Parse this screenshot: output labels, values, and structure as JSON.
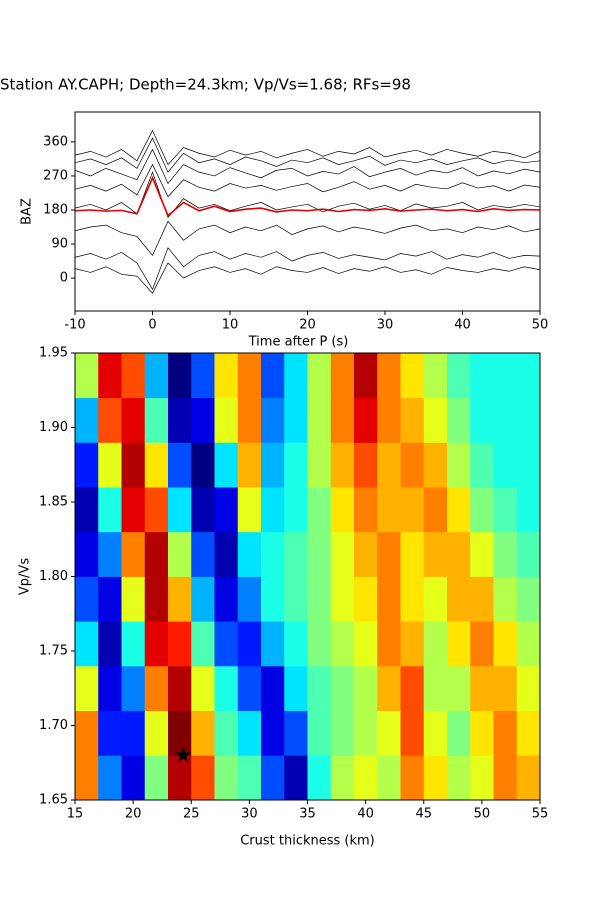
{
  "chart_data": [
    {
      "type": "line",
      "title": "Station AY.CAPH; Depth=24.3km; Vp/Vs=1.68; RFs=98",
      "xlabel": "Time after P (s)",
      "ylabel": "BAZ",
      "x": [
        -10,
        -8,
        -6,
        -4,
        -2,
        0,
        2,
        4,
        6,
        8,
        10,
        12,
        14,
        16,
        18,
        20,
        22,
        24,
        26,
        28,
        30,
        32,
        34,
        36,
        38,
        40,
        42,
        44,
        46,
        48,
        50
      ],
      "xlim": [
        -10,
        50
      ],
      "xticks": [
        -10,
        0,
        10,
        20,
        30,
        40,
        50
      ],
      "ylim": [
        -87,
        439
      ],
      "yticks": [
        0,
        90,
        180,
        270,
        360
      ],
      "series": [
        {
          "color": "#000000",
          "values": [
            325,
            335,
            320,
            340,
            310,
            390,
            300,
            345,
            330,
            320,
            338,
            325,
            335,
            318,
            330,
            340,
            322,
            335,
            328,
            345,
            320,
            330,
            338,
            325,
            340,
            330,
            322,
            335,
            330,
            318,
            335
          ]
        },
        {
          "color": "#000000",
          "values": [
            305,
            315,
            300,
            318,
            290,
            370,
            280,
            330,
            305,
            315,
            300,
            320,
            310,
            295,
            312,
            305,
            318,
            300,
            310,
            322,
            298,
            312,
            305,
            315,
            300,
            310,
            318,
            302,
            312,
            305,
            310
          ]
        },
        {
          "color": "#000000",
          "values": [
            285,
            270,
            290,
            275,
            260,
            340,
            250,
            300,
            280,
            270,
            292,
            278,
            265,
            285,
            290,
            270,
            282,
            275,
            295,
            268,
            280,
            290,
            272,
            285,
            278,
            292,
            270,
            283,
            276,
            288,
            280
          ]
        },
        {
          "color": "#000000",
          "values": [
            235,
            245,
            230,
            248,
            220,
            300,
            215,
            260,
            240,
            230,
            250,
            238,
            245,
            232,
            242,
            250,
            228,
            240,
            255,
            235,
            245,
            230,
            248,
            240,
            236,
            252,
            238,
            244,
            230,
            246,
            240
          ]
        },
        {
          "color": "#000000",
          "values": [
            185,
            195,
            180,
            200,
            170,
            280,
            160,
            210,
            185,
            195,
            178,
            190,
            200,
            180,
            188,
            195,
            175,
            190,
            198,
            182,
            192,
            178,
            196,
            185,
            190,
            200,
            180,
            192,
            186,
            195,
            188
          ]
        },
        {
          "color": "#000000",
          "values": [
            125,
            135,
            140,
            120,
            110,
            60,
            150,
            100,
            130,
            140,
            120,
            135,
            125,
            140,
            115,
            130,
            138,
            122,
            135,
            128,
            118,
            132,
            140,
            125,
            130,
            120,
            135,
            128,
            138,
            122,
            130
          ]
        },
        {
          "color": "#000000",
          "values": [
            55,
            65,
            50,
            68,
            40,
            -30,
            80,
            30,
            60,
            70,
            50,
            65,
            55,
            70,
            45,
            60,
            68,
            52,
            62,
            55,
            48,
            65,
            58,
            70,
            50,
            62,
            55,
            68,
            52,
            60,
            58
          ]
        },
        {
          "color": "#000000",
          "values": [
            25,
            15,
            30,
            10,
            5,
            -40,
            40,
            0,
            20,
            30,
            15,
            25,
            10,
            30,
            20,
            15,
            28,
            12,
            25,
            18,
            30,
            15,
            22,
            10,
            28,
            20,
            15,
            25,
            18,
            30,
            22
          ]
        },
        {
          "color": "#e00000",
          "values": [
            178,
            180,
            177,
            179,
            170,
            265,
            165,
            200,
            178,
            190,
            176,
            182,
            185,
            175,
            180,
            178,
            182,
            176,
            181,
            179,
            183,
            177,
            180,
            182,
            178,
            181,
            176,
            183,
            179,
            181,
            180
          ]
        }
      ]
    },
    {
      "type": "heatmap",
      "xlabel": "Crust thickness (km)",
      "ylabel": "Vp/Vs",
      "colormap": "jet",
      "zlim": [
        -1,
        1
      ],
      "x_edges": [
        15,
        17,
        19,
        21,
        23,
        25,
        27,
        29,
        31,
        33,
        35,
        37,
        39,
        41,
        43,
        45,
        47,
        49,
        51,
        53,
        55
      ],
      "y_edges": [
        1.65,
        1.68,
        1.71,
        1.74,
        1.77,
        1.8,
        1.83,
        1.86,
        1.89,
        1.92,
        1.95
      ],
      "z": [
        [
          0.5,
          -0.5,
          -0.8,
          0.0,
          0.9,
          0.6,
          0.0,
          -0.1,
          -0.6,
          -0.9,
          -0.2,
          0.1,
          0.2,
          0.1,
          0.5,
          0.3,
          0.1,
          0.2,
          0.5,
          0.4
        ],
        [
          0.5,
          -0.7,
          -0.7,
          0.2,
          1.0,
          0.4,
          -0.1,
          -0.3,
          -0.8,
          -0.6,
          -0.1,
          0.0,
          0.1,
          0.2,
          0.6,
          0.2,
          0.0,
          0.3,
          0.5,
          0.3
        ],
        [
          0.2,
          -0.8,
          -0.5,
          0.5,
          0.9,
          0.2,
          -0.2,
          -0.6,
          -0.8,
          -0.3,
          -0.1,
          0.0,
          0.1,
          0.4,
          0.6,
          0.1,
          0.1,
          0.4,
          0.4,
          0.2
        ],
        [
          -0.3,
          -0.9,
          -0.2,
          0.8,
          0.7,
          -0.1,
          -0.6,
          -0.7,
          -0.4,
          -0.2,
          0.0,
          0.1,
          0.2,
          0.5,
          0.4,
          0.1,
          0.3,
          0.5,
          0.3,
          0.1
        ],
        [
          -0.6,
          -0.8,
          0.2,
          0.9,
          0.4,
          -0.4,
          -0.8,
          -0.5,
          -0.2,
          -0.1,
          0.0,
          0.2,
          0.3,
          0.5,
          0.3,
          0.2,
          0.4,
          0.4,
          0.1,
          0.0
        ],
        [
          -0.8,
          -0.5,
          0.5,
          0.9,
          0.1,
          -0.6,
          -0.9,
          -0.3,
          -0.2,
          -0.1,
          0.0,
          0.2,
          0.4,
          0.5,
          0.3,
          0.4,
          0.4,
          0.2,
          0.0,
          -0.1
        ],
        [
          -0.9,
          -0.2,
          0.8,
          0.6,
          -0.3,
          -0.9,
          -0.8,
          0.2,
          -0.3,
          -0.2,
          0.0,
          0.3,
          0.5,
          0.4,
          0.4,
          0.5,
          0.3,
          0.0,
          -0.1,
          -0.2
        ],
        [
          -0.7,
          0.2,
          0.9,
          0.3,
          -0.6,
          -1.0,
          -0.3,
          0.4,
          -0.4,
          -0.2,
          0.1,
          0.4,
          0.6,
          0.4,
          0.5,
          0.4,
          0.1,
          -0.1,
          -0.2,
          -0.2
        ],
        [
          -0.4,
          0.6,
          0.8,
          -0.1,
          -0.9,
          -0.8,
          0.2,
          0.5,
          -0.5,
          -0.3,
          0.1,
          0.5,
          0.8,
          0.5,
          0.4,
          0.2,
          0.0,
          -0.2,
          -0.2,
          -0.2
        ],
        [
          0.1,
          0.8,
          0.6,
          -0.4,
          -1.0,
          -0.6,
          0.3,
          0.5,
          -0.6,
          -0.3,
          0.1,
          0.5,
          0.9,
          0.5,
          0.3,
          0.1,
          -0.1,
          -0.2,
          -0.2,
          -0.2
        ]
      ],
      "marker": {
        "x": 24.3,
        "y": 1.68
      },
      "xlim": [
        15,
        55
      ],
      "xticks": [
        15,
        20,
        25,
        30,
        35,
        40,
        45,
        50,
        55
      ],
      "ylim": [
        1.65,
        1.95
      ],
      "yticks": [
        1.65,
        {
          "value": 1.7,
          "label": "1.70"
        },
        1.75,
        {
          "value": 1.8,
          "label": "1.80"
        },
        1.85,
        {
          "value": 1.9,
          "label": "1.90"
        },
        1.95
      ]
    }
  ]
}
